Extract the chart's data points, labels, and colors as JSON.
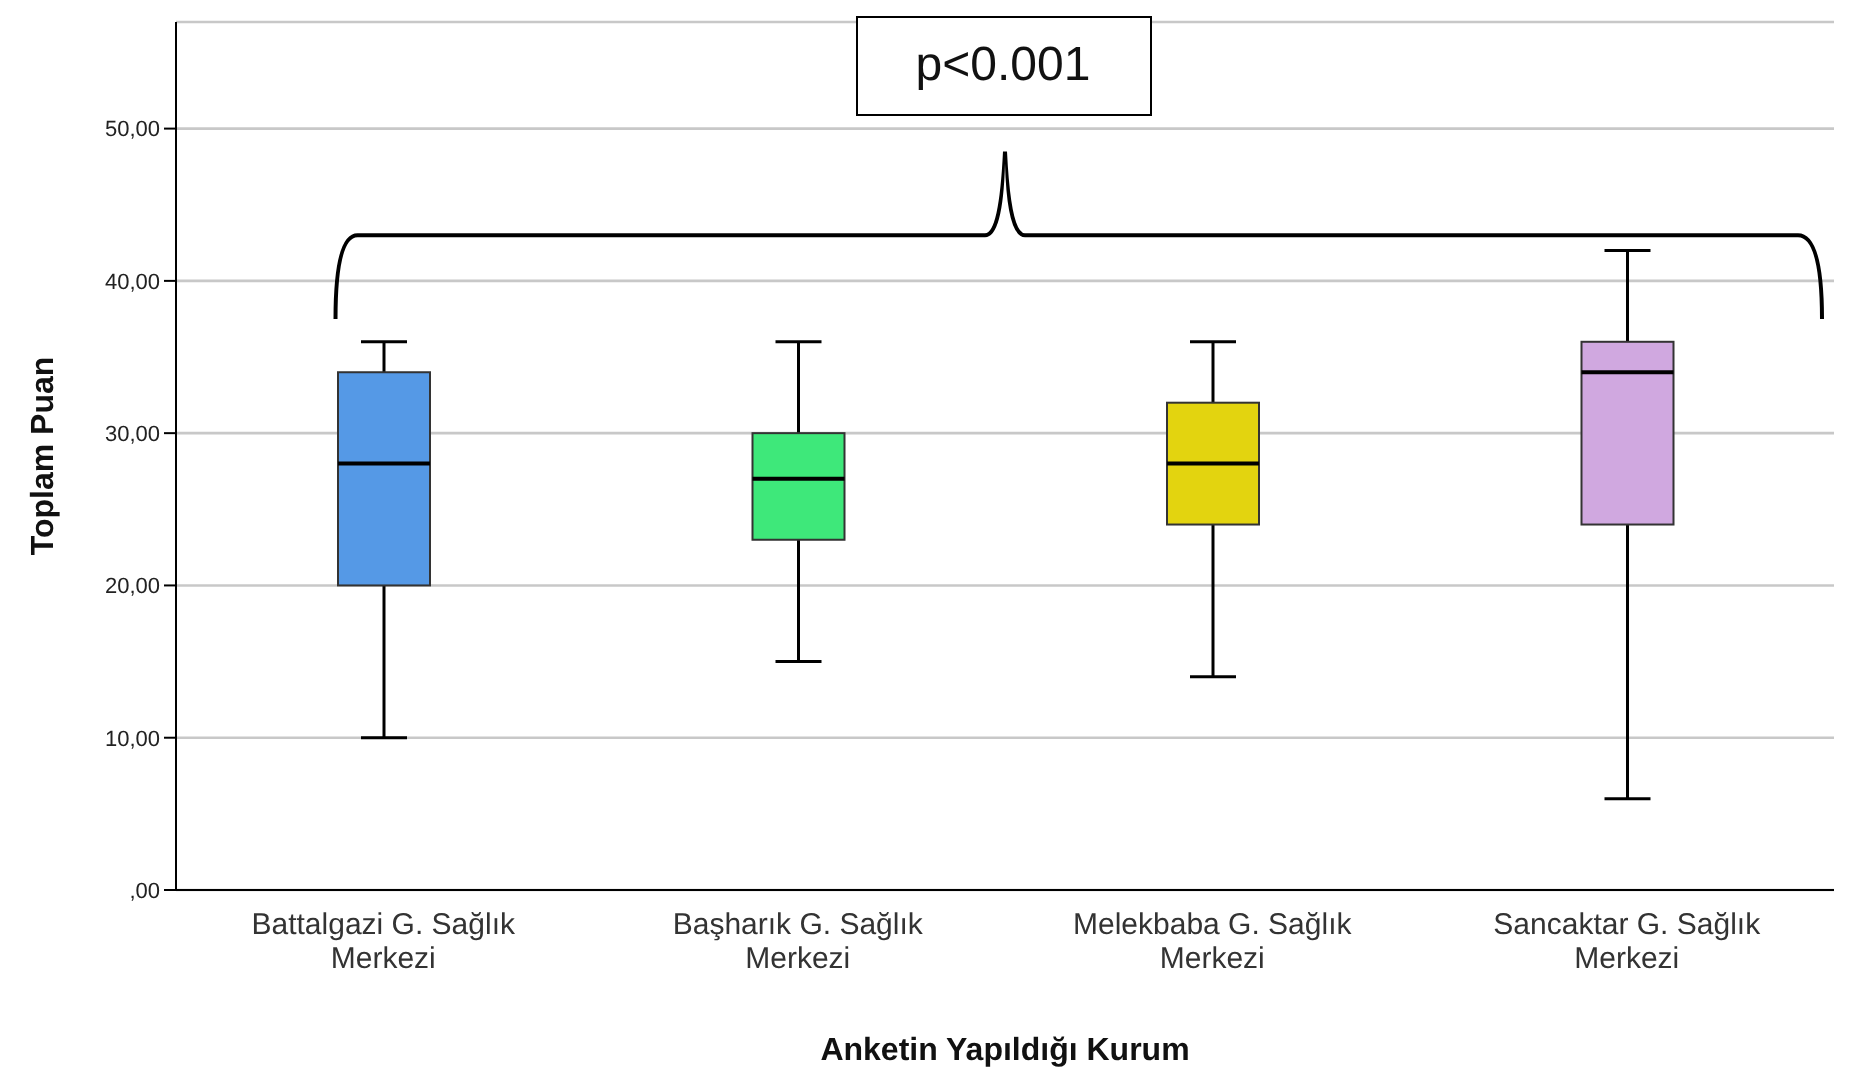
{
  "chart_data": {
    "type": "box",
    "xlabel": "Anketin Yapıldığı Kurum",
    "ylabel": "Toplam Puan",
    "categories": [
      "Battalgazi G. Sağlık Merkezi",
      "Başharık G. Sağlık Merkezi",
      "Melekbaba G. Sağlık Merkezi",
      "Sancaktar G. Sağlık Merkezi"
    ],
    "colors": [
      "#5599e6",
      "#3ee87a",
      "#e3d40f",
      "#d0a8e0"
    ],
    "boxes": [
      {
        "low": 10,
        "q1": 20,
        "median": 28,
        "q3": 34,
        "high": 36
      },
      {
        "low": 15,
        "q1": 23,
        "median": 27,
        "q3": 30,
        "high": 36
      },
      {
        "low": 14,
        "q1": 24,
        "median": 28,
        "q3": 32,
        "high": 36
      },
      {
        "low": 6,
        "q1": 24,
        "median": 34,
        "q3": 36,
        "high": 42
      }
    ],
    "ylim": [
      0,
      57
    ],
    "yticks": [
      {
        "value": 0,
        "label": ",00"
      },
      {
        "value": 10,
        "label": "10,00"
      },
      {
        "value": 20,
        "label": "20,00"
      },
      {
        "value": 30,
        "label": "30,00"
      },
      {
        "value": 40,
        "label": "40,00"
      },
      {
        "value": 50,
        "label": "50,00"
      }
    ],
    "grid": "y",
    "annotations": [
      "p<0.001"
    ]
  }
}
